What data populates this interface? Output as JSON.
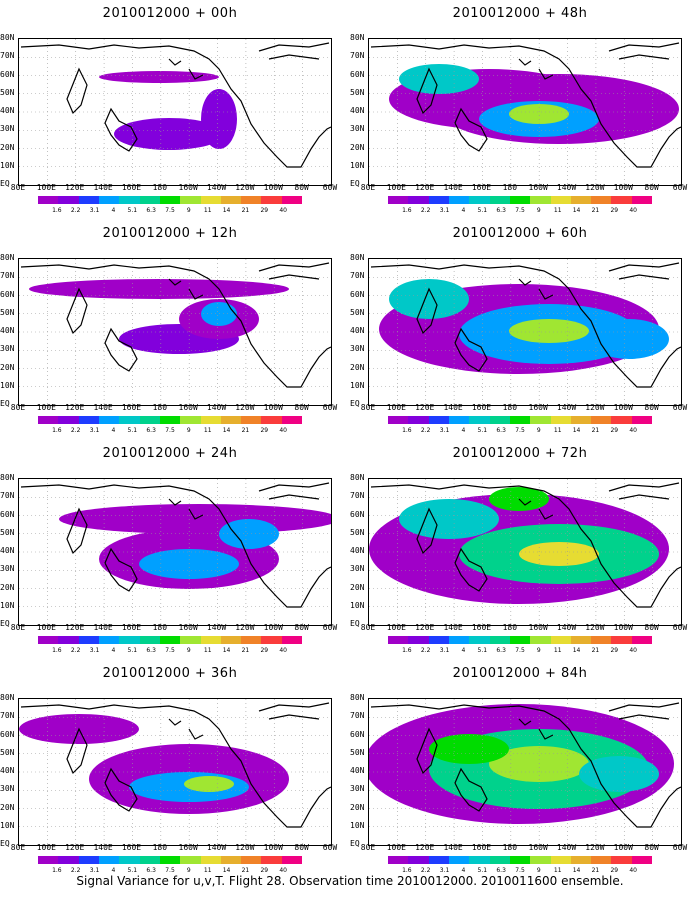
{
  "figure": {
    "caption": "Signal Variance for u,v,T. Flight 28. Observation time 2010012000. 2010011600 ensemble."
  },
  "axes": {
    "lat_labels": [
      "80N",
      "70N",
      "60N",
      "50N",
      "40N",
      "30N",
      "20N",
      "10N",
      "EQ"
    ],
    "lon_labels": [
      "80E",
      "100E",
      "120E",
      "140E",
      "160E",
      "180",
      "160W",
      "140W",
      "120W",
      "100W",
      "80W",
      "60W"
    ]
  },
  "colorbar": {
    "labels": [
      "1.6",
      "2.2",
      "3.1",
      "4",
      "5.1",
      "6.3",
      "7.5",
      "9",
      "11",
      "14",
      "21",
      "29",
      "40"
    ],
    "colors": [
      "#a000c8",
      "#8200dc",
      "#1e3cff",
      "#00a0ff",
      "#00c8c8",
      "#00d28c",
      "#00dc00",
      "#a0e632",
      "#e6dc32",
      "#e6af2d",
      "#f08228",
      "#fa3c3c",
      "#f00082"
    ]
  },
  "panels": [
    {
      "title": "2010012000 + 00h",
      "lead_hours": 0
    },
    {
      "title": "2010012000 + 48h",
      "lead_hours": 48
    },
    {
      "title": "2010012000 + 12h",
      "lead_hours": 12
    },
    {
      "title": "2010012000 + 60h",
      "lead_hours": 60
    },
    {
      "title": "2010012000 + 24h",
      "lead_hours": 24
    },
    {
      "title": "2010012000 + 72h",
      "lead_hours": 72
    },
    {
      "title": "2010012000 + 36h",
      "lead_hours": 36
    },
    {
      "title": "2010012000 + 84h",
      "lead_hours": 84
    }
  ]
}
